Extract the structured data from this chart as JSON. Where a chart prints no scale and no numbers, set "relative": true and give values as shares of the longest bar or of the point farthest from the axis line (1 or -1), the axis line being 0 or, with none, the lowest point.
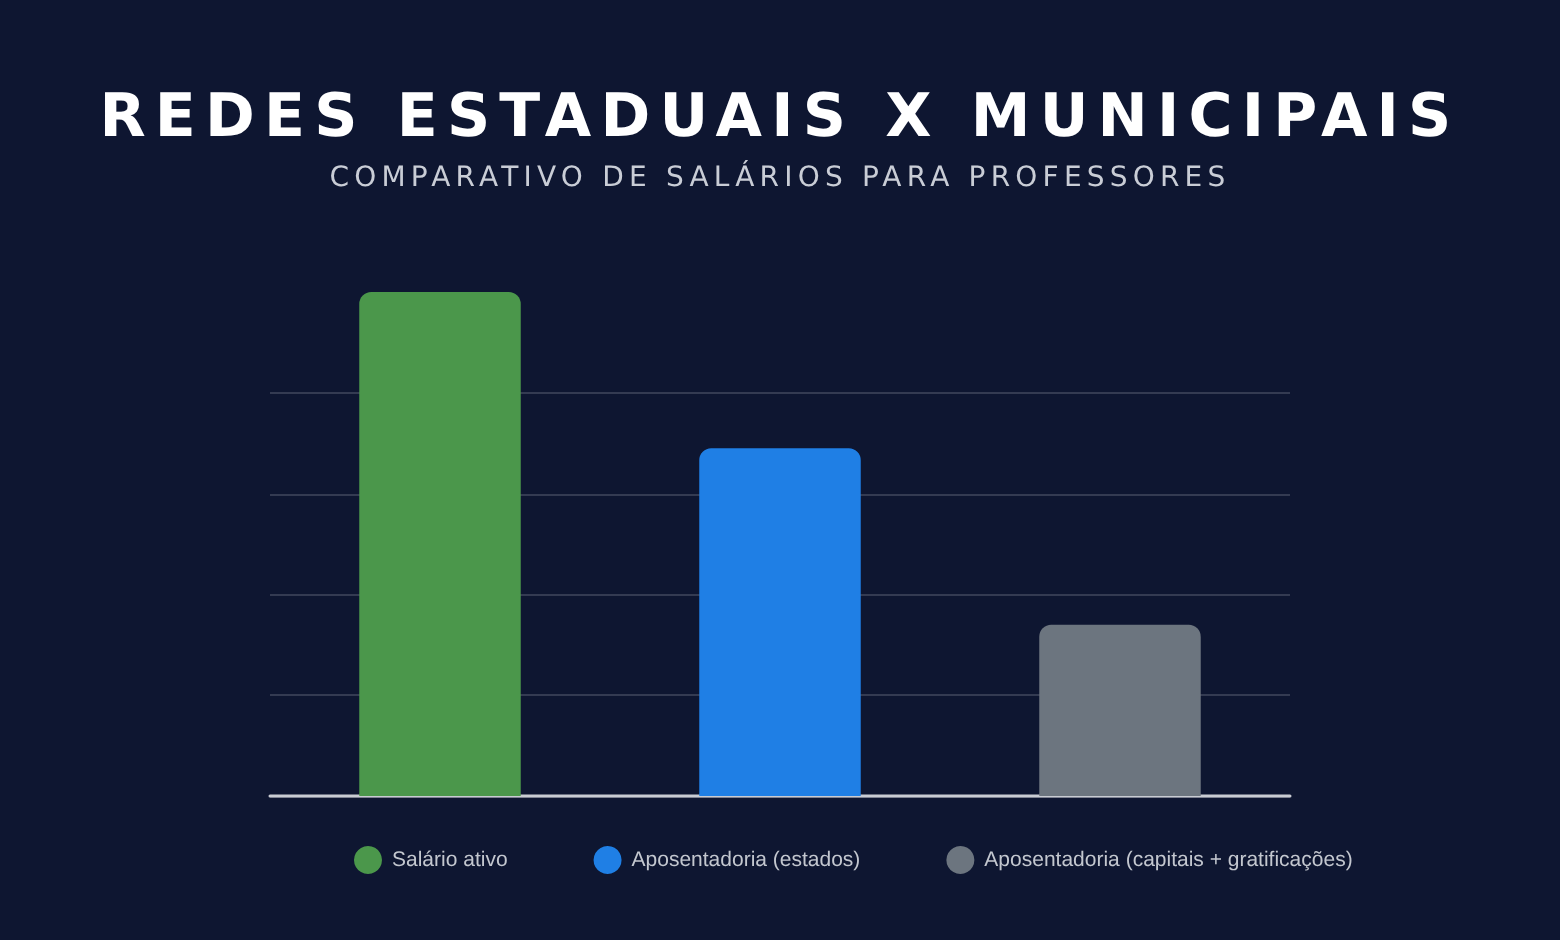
{
  "chart_data": {
    "type": "bar",
    "title": "REDES ESTADUAIS X MUNICIPAIS",
    "subtitle": "COMPARATIVO DE SALÁRIOS PARA PROFESSORES",
    "categories": [
      null,
      null,
      null
    ],
    "series": [
      {
        "name": "Salário ativo",
        "color": "#4b974b",
        "values": [
          1,
          null,
          null
        ]
      },
      {
        "name": "Aposentadoria (estados)",
        "color": "#1f7fe5",
        "values": [
          null,
          0.69,
          null
        ]
      },
      {
        "name": "Aposentadoria (capitais + gratificações)",
        "color": "#6c757f",
        "values": [
          null,
          null,
          0.34
        ]
      }
    ],
    "stacked": true,
    "relative": true,
    "grid": "y",
    "legend": "bottom"
  }
}
